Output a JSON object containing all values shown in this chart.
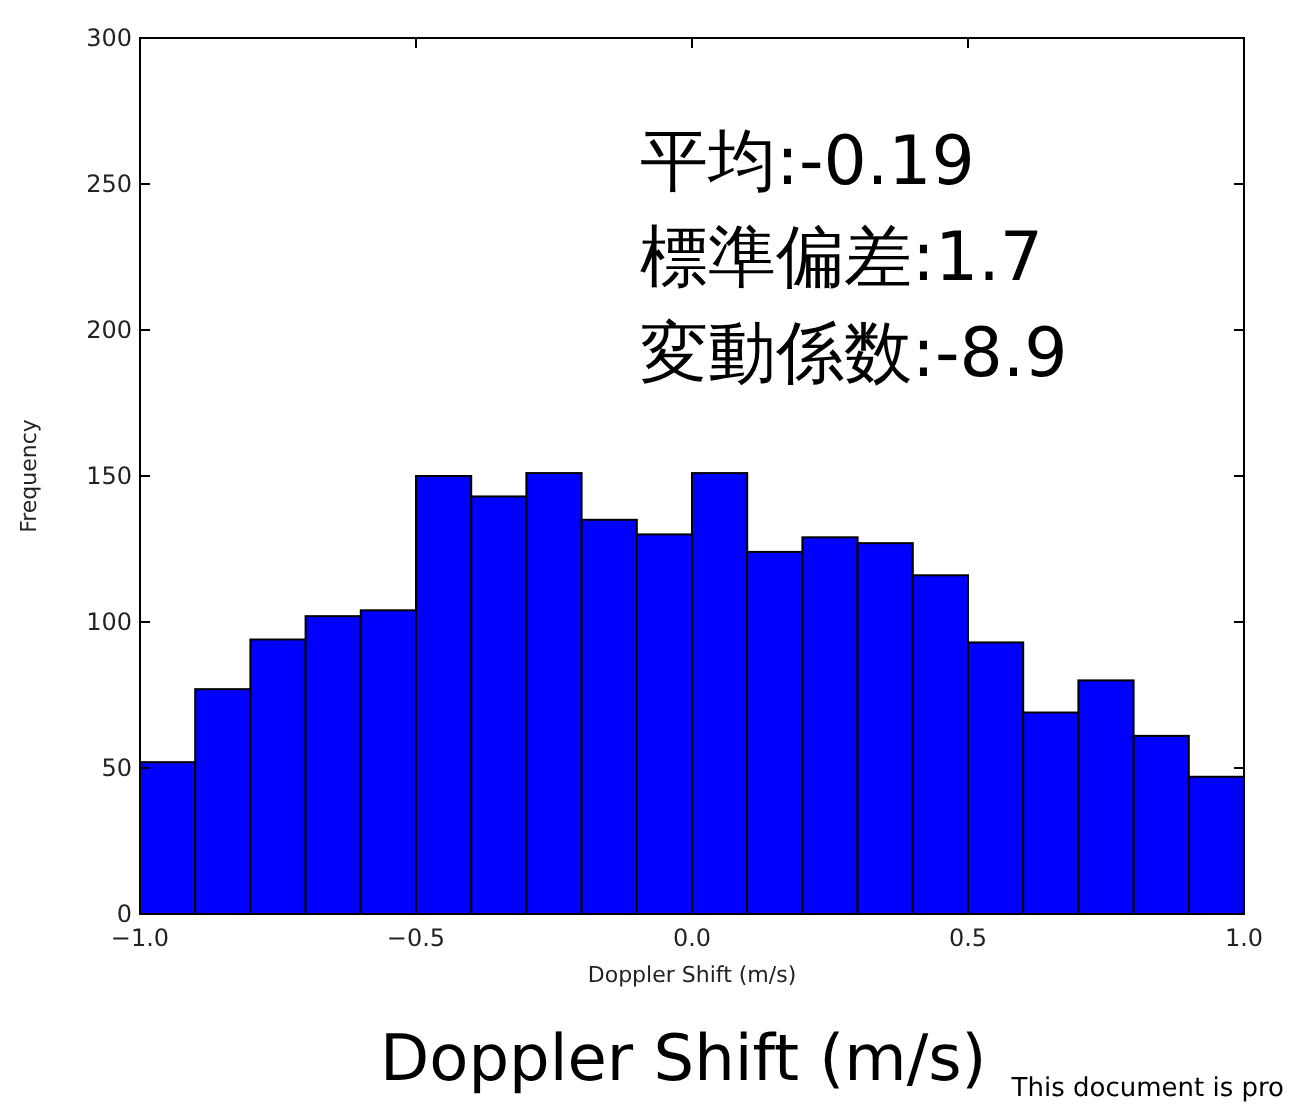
{
  "chart_data": {
    "type": "histogram",
    "xlabel": "Doppler Shift (m/s)",
    "ylabel": "Frequency",
    "bins": [
      -1.0,
      -0.9,
      -0.8,
      -0.7,
      -0.6,
      -0.5,
      -0.4,
      -0.3,
      -0.2,
      -0.1,
      0.0,
      0.1,
      0.2,
      0.3,
      0.4,
      0.5,
      0.6,
      0.7,
      0.8,
      0.9,
      1.0
    ],
    "values": [
      52,
      77,
      94,
      102,
      104,
      150,
      143,
      151,
      135,
      130,
      151,
      124,
      129,
      127,
      116,
      93,
      69,
      80,
      61,
      47
    ],
    "color": "#0000ff",
    "xlim": [
      -1.0,
      1.0
    ],
    "xticks": [
      {
        "value": -1.0,
        "label": "−1.0"
      },
      {
        "value": -0.5,
        "label": "−0.5"
      },
      {
        "value": 0.0,
        "label": "0.0"
      },
      {
        "value": 0.5,
        "label": "0.5"
      },
      {
        "value": 1.0,
        "label": "1.0"
      }
    ],
    "ylim": [
      0,
      300
    ],
    "yticks": [
      0,
      50,
      100,
      150,
      200,
      250,
      300
    ],
    "grid": false,
    "annotations": [
      "平均:-0.19",
      "標準偏差:1.7",
      "変動係数:-8.9",
      "Doppler Shift (m/s)",
      "This document is pro"
    ]
  }
}
